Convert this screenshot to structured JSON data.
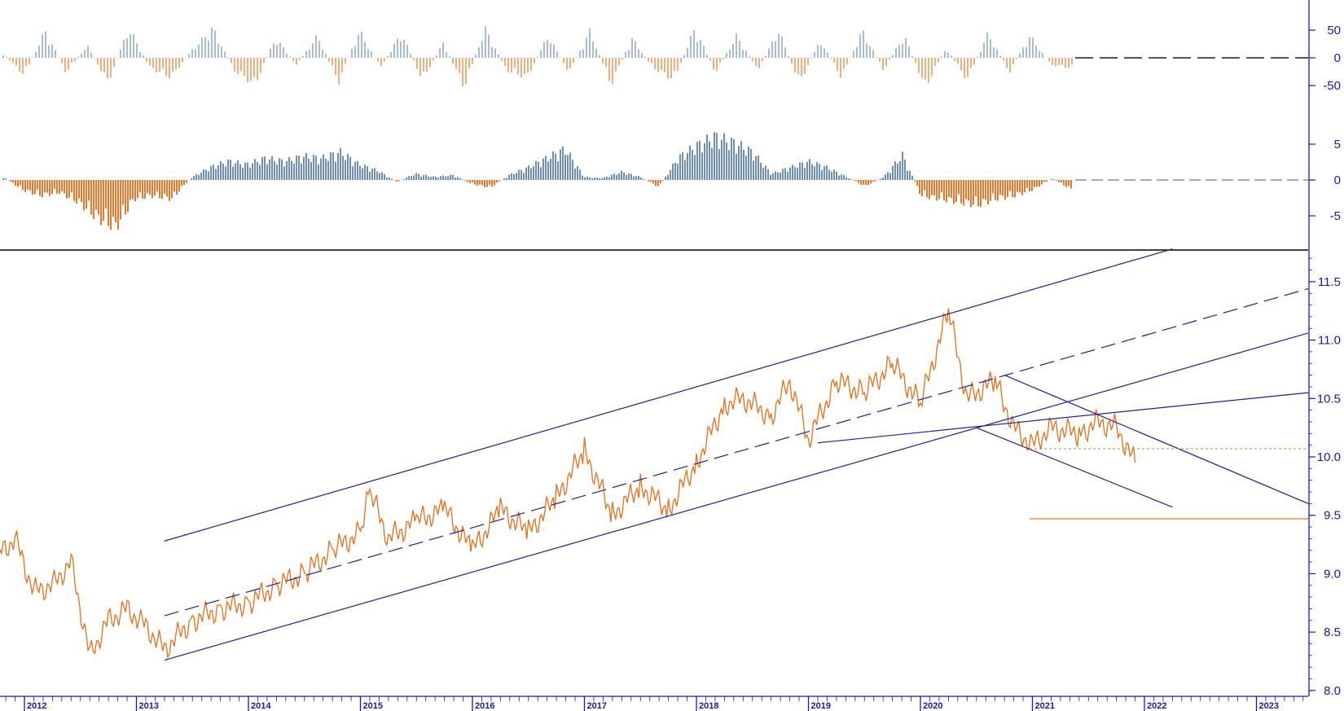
{
  "chart_data": [
    {
      "type": "bar",
      "panel": "oscillator-1",
      "yticks": [
        "50",
        "0",
        "-50"
      ],
      "ylim": [
        -90,
        90
      ],
      "zero_line": "dashed",
      "colors": {
        "positive": "#6f8fb8",
        "negative": "#e8772e"
      },
      "series": [
        {
          "values": [
            8,
            -35,
            55,
            -30,
            25,
            -50,
            60,
            -20,
            -40,
            15,
            60,
            -25,
            -55,
            40,
            -15,
            45,
            -50,
            55,
            -20,
            50,
            -45,
            30,
            -60,
            60,
            -25,
            -40,
            45,
            -30,
            55,
            -55,
            40,
            -20,
            -45,
            60,
            -30,
            45,
            -25,
            55,
            -50,
            35,
            -40,
            55,
            -25,
            45,
            -60,
            20,
            -45,
            50,
            -30,
            45,
            -15,
            -20
          ]
        }
      ]
    },
    {
      "type": "bar",
      "panel": "oscillator-2",
      "yticks": [
        "5",
        "0",
        "-5"
      ],
      "ylim": [
        -8,
        8
      ],
      "zero_line": "dashed",
      "colors": {
        "positive": "#6f8fb8",
        "negative": "#e8772e"
      },
      "series": [
        {
          "values": [
            0.5,
            -1.5,
            -2.5,
            -2,
            -3.5,
            -6,
            -7.5,
            -3,
            -2.5,
            -3,
            0.3,
            2,
            3,
            2.5,
            3.5,
            3,
            3.8,
            3.5,
            4.5,
            2.5,
            1.5,
            -0.3,
            1,
            0.5,
            0.8,
            -0.6,
            -1.2,
            0.8,
            2,
            3.5,
            5,
            0.5,
            0.3,
            1.3,
            0.5,
            -1.1,
            3.5,
            5.5,
            7,
            6,
            4.5,
            1,
            2,
            3,
            2,
            0.5,
            -1,
            0.5,
            4,
            -2.5,
            -3,
            -3.5,
            -4,
            -3,
            -2.5,
            -1.5,
            0.3,
            -1.5
          ]
        }
      ]
    },
    {
      "type": "line",
      "panel": "price",
      "yticks": [
        "11.5",
        "11.0",
        "10.5",
        "10.0",
        "9.5",
        "9.0",
        "8.5",
        "8.0"
      ],
      "ylim": [
        7.95,
        11.75
      ],
      "x_labels": [
        "2012",
        "2013",
        "2014",
        "2015",
        "2016",
        "2017",
        "2018",
        "2019",
        "2020",
        "2021",
        "2022",
        "2023"
      ],
      "xlim": [
        "2011-09",
        "2023-06"
      ],
      "series": [
        {
          "x": [
            "2011-09",
            "2011-11",
            "2012-01",
            "2012-03",
            "2012-05",
            "2012-07",
            "2012-09",
            "2012-11",
            "2013-01",
            "2013-03",
            "2013-06",
            "2013-09",
            "2013-12",
            "2014-03",
            "2014-06",
            "2014-09",
            "2014-12",
            "2015-01",
            "2015-03",
            "2015-06",
            "2015-09",
            "2015-12",
            "2016-03",
            "2016-06",
            "2016-09",
            "2016-12",
            "2017-03",
            "2017-06",
            "2017-09",
            "2017-12",
            "2018-03",
            "2018-05",
            "2018-08",
            "2018-10",
            "2018-12",
            "2019-03",
            "2019-06",
            "2019-09",
            "2019-12",
            "2020-03",
            "2020-05",
            "2020-08",
            "2020-10",
            "2020-12",
            "2021-02",
            "2021-05",
            "2021-07",
            "2021-09",
            "2021-11"
          ],
          "y": [
            9.15,
            9.3,
            8.85,
            8.9,
            9.1,
            8.3,
            8.6,
            8.7,
            8.55,
            8.35,
            8.6,
            8.7,
            8.75,
            8.9,
            9.0,
            9.2,
            9.35,
            9.7,
            9.3,
            9.45,
            9.55,
            9.2,
            9.55,
            9.35,
            9.65,
            10.05,
            9.5,
            9.75,
            9.55,
            9.95,
            10.45,
            10.5,
            10.35,
            10.65,
            10.15,
            10.65,
            10.55,
            10.8,
            10.45,
            11.25,
            10.5,
            10.65,
            10.25,
            10.1,
            10.25,
            10.2,
            10.3,
            10.25,
            9.95
          ]
        }
      ],
      "colors": {
        "price": "#e07020",
        "trendline": "#20208c",
        "level": "#e8772e"
      },
      "lines": {
        "channel_upper": {
          "x": [
            "2013-03",
            "2022-03"
          ],
          "y": [
            9.28,
            11.78
          ]
        },
        "channel_middle": {
          "x": [
            "2013-03",
            "2023-06"
          ],
          "y": [
            8.64,
            11.44
          ],
          "style": "dashed"
        },
        "channel_lower": {
          "x": [
            "2013-03",
            "2023-06"
          ],
          "y": [
            8.26,
            11.06
          ]
        },
        "fan_line": {
          "x": [
            "2019-01",
            "2023-06"
          ],
          "y": [
            10.12,
            10.55
          ]
        },
        "downtrend_upper": {
          "x": [
            "2020-09",
            "2023-06"
          ],
          "y": [
            10.7,
            9.6
          ]
        },
        "downtrend_lower": {
          "x": [
            "2020-06",
            "2022-03"
          ],
          "y": [
            10.25,
            9.57
          ]
        },
        "support_level": {
          "x": [
            "2021-00",
            "2023-06"
          ],
          "y": [
            9.47,
            9.47
          ]
        },
        "dotted_level": {
          "x": [
            "2021-00",
            "2023-06"
          ],
          "y": [
            10.07,
            10.07
          ],
          "style": "dotted"
        }
      }
    }
  ]
}
